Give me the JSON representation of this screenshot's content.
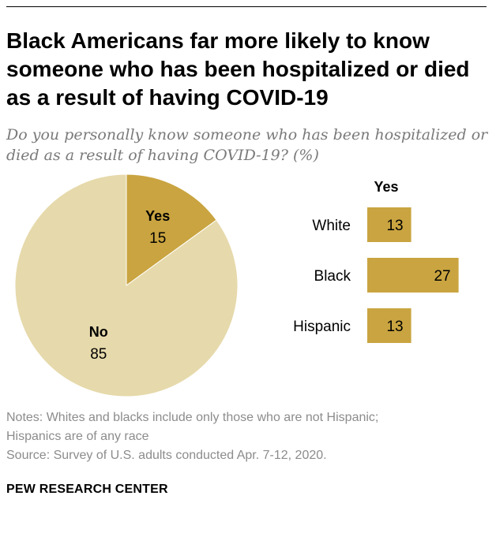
{
  "title": "Black Americans far more likely to know someone who has been hospitalized or died as a result of having COVID-19",
  "subtitle": "Do you personally know someone who has been hospitalized or died as a result of having COVID-19? (%)",
  "notes": {
    "line1": "Notes: Whites and blacks include only those who are not Hispanic;",
    "line2": "Hispanics are of any race",
    "source": "Source: Survey of U.S. adults conducted Apr. 7-12, 2020."
  },
  "brand": "PEW RESEARCH CENTER",
  "colors": {
    "yes": "#c9a440",
    "no": "#e6d9ab",
    "muted": "#8c8c8c"
  },
  "chart_data": [
    {
      "type": "pie",
      "slices": [
        {
          "label": "Yes",
          "value": 15
        },
        {
          "label": "No",
          "value": 85
        }
      ]
    },
    {
      "type": "bar",
      "column_header": "Yes",
      "categories": [
        "White",
        "Black",
        "Hispanic"
      ],
      "values": [
        13,
        27,
        13
      ]
    }
  ]
}
